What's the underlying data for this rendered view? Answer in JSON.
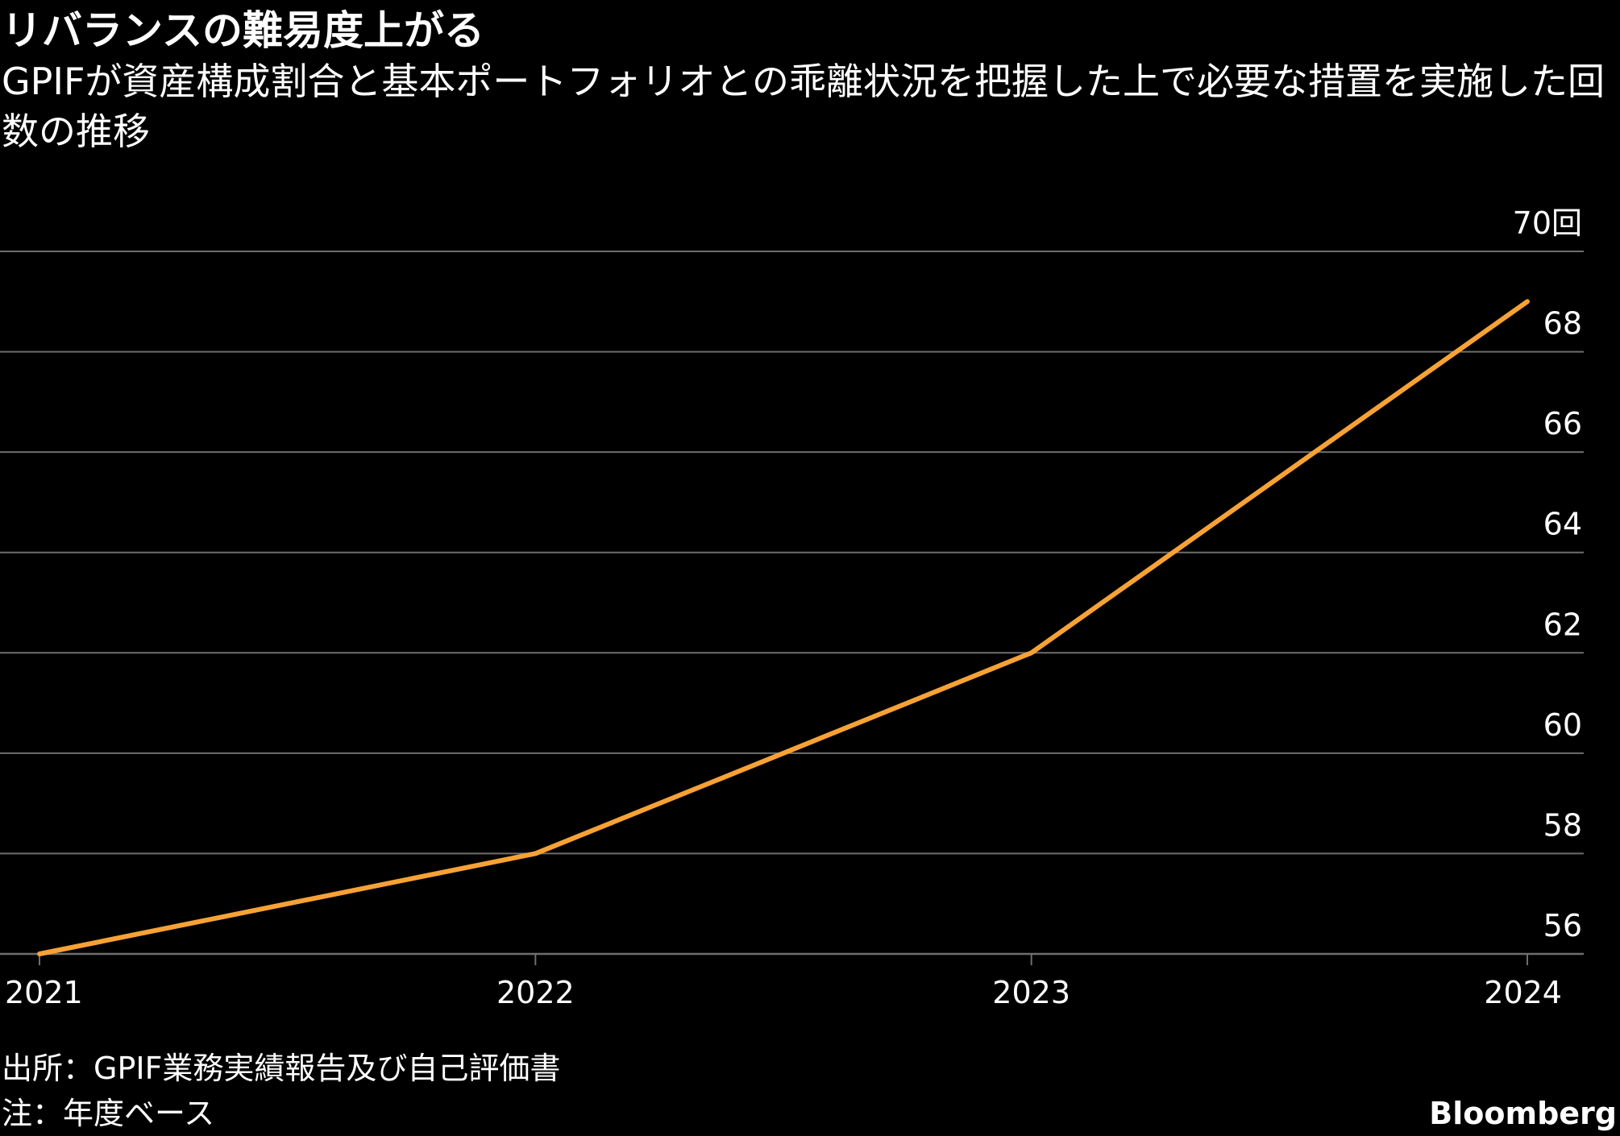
{
  "header": {
    "title": "リバランスの難易度上がる",
    "subtitle": "GPIFが資産構成割合と基本ポートフォリオとの乖離状況を把握した上で必要な措置を実施した回数の推移"
  },
  "footer": {
    "source": "出所：GPIF業務実績報告及び自己評価書",
    "note": "注：年度ベース",
    "brand": "Bloomberg"
  },
  "colors": {
    "background": "#000000",
    "line": "#f7a235",
    "grid": "#6e6e6e",
    "text": "#ffffff"
  },
  "chart_data": {
    "type": "line",
    "x": [
      "2021",
      "2022",
      "2023",
      "2024"
    ],
    "series": [
      {
        "values": [
          56,
          58,
          62,
          69
        ]
      }
    ],
    "yticks": [
      56,
      58,
      60,
      62,
      64,
      66,
      68,
      70
    ],
    "ytick_labels": [
      "56",
      "58",
      "60",
      "62",
      "64",
      "66",
      "68",
      "70回"
    ],
    "ylim": [
      56,
      70
    ],
    "xlabel": "",
    "ylabel": "",
    "grid": true,
    "y_axis_position": "right"
  }
}
